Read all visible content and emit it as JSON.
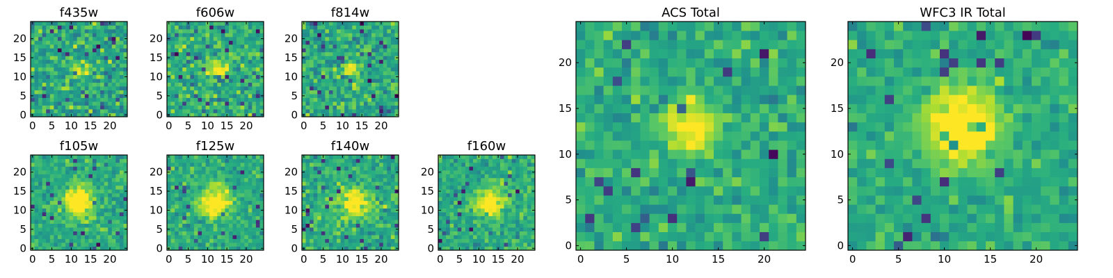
{
  "chart_data": [
    {
      "type": "heatmap",
      "title": "f435w",
      "xticks": [
        "0",
        "5",
        "10",
        "15",
        "20"
      ],
      "yticks": [
        "0",
        "5",
        "10",
        "15",
        "20"
      ],
      "grid_size": 25,
      "xlim": [
        -0.5,
        24.5
      ],
      "ylim": [
        -0.5,
        24.5
      ],
      "colormap": "viridis",
      "blob_center": [
        12,
        12
      ],
      "blob_width": 1.4,
      "blob_strength": 0.35,
      "noise": 0.85,
      "seed": 11
    },
    {
      "type": "heatmap",
      "title": "f606w",
      "xticks": [
        "0",
        "5",
        "10",
        "15",
        "20"
      ],
      "yticks": [
        "0",
        "5",
        "10",
        "15",
        "20"
      ],
      "grid_size": 25,
      "xlim": [
        -0.5,
        24.5
      ],
      "ylim": [
        -0.5,
        24.5
      ],
      "colormap": "viridis",
      "blob_center": [
        13,
        12
      ],
      "blob_width": 1.8,
      "blob_strength": 0.45,
      "noise": 0.8,
      "seed": 23
    },
    {
      "type": "heatmap",
      "title": "f814w",
      "xticks": [
        "0",
        "5",
        "10",
        "15",
        "20"
      ],
      "yticks": [
        "0",
        "5",
        "10",
        "15",
        "20"
      ],
      "grid_size": 25,
      "xlim": [
        -0.5,
        24.5
      ],
      "ylim": [
        -0.5,
        24.5
      ],
      "colormap": "viridis",
      "blob_center": [
        12,
        12
      ],
      "blob_width": 1.6,
      "blob_strength": 0.4,
      "noise": 0.8,
      "seed": 37
    },
    {
      "type": "heatmap",
      "title": "f105w",
      "xticks": [
        "0",
        "5",
        "10",
        "15",
        "20"
      ],
      "yticks": [
        "0",
        "5",
        "10",
        "15",
        "20"
      ],
      "grid_size": 25,
      "xlim": [
        -0.5,
        24.5
      ],
      "ylim": [
        -0.5,
        24.5
      ],
      "colormap": "viridis",
      "blob_center": [
        12,
        12
      ],
      "blob_width": 2.8,
      "blob_strength": 0.55,
      "noise": 0.6,
      "seed": 41
    },
    {
      "type": "heatmap",
      "title": "f125w",
      "xticks": [
        "0",
        "5",
        "10",
        "15",
        "20"
      ],
      "yticks": [
        "0",
        "5",
        "10",
        "15",
        "20"
      ],
      "grid_size": 25,
      "xlim": [
        -0.5,
        24.5
      ],
      "ylim": [
        -0.5,
        24.5
      ],
      "colormap": "viridis",
      "blob_center": [
        12,
        12
      ],
      "blob_width": 2.8,
      "blob_strength": 0.5,
      "noise": 0.6,
      "seed": 53
    },
    {
      "type": "heatmap",
      "title": "f140w",
      "xticks": [
        "0",
        "5",
        "10",
        "15",
        "20"
      ],
      "yticks": [
        "0",
        "5",
        "10",
        "15",
        "20"
      ],
      "grid_size": 25,
      "xlim": [
        -0.5,
        24.5
      ],
      "ylim": [
        -0.5,
        24.5
      ],
      "colormap": "viridis",
      "blob_center": [
        13,
        12
      ],
      "blob_width": 2.6,
      "blob_strength": 0.5,
      "noise": 0.65,
      "seed": 67
    },
    {
      "type": "heatmap",
      "title": "f160w",
      "xticks": [
        "0",
        "5",
        "10",
        "15",
        "20"
      ],
      "yticks": [
        "0",
        "5",
        "10",
        "15",
        "20"
      ],
      "grid_size": 25,
      "xlim": [
        -0.5,
        24.5
      ],
      "ylim": [
        -0.5,
        24.5
      ],
      "colormap": "viridis",
      "blob_center": [
        13,
        12
      ],
      "blob_width": 2.6,
      "blob_strength": 0.5,
      "noise": 0.65,
      "seed": 79
    },
    {
      "type": "heatmap",
      "title": "ACS Total",
      "xticks": [
        "0",
        "5",
        "10",
        "15",
        "20"
      ],
      "yticks": [
        "0",
        "5",
        "10",
        "15",
        "20"
      ],
      "grid_size": 25,
      "xlim": [
        -0.5,
        24.5
      ],
      "ylim": [
        -0.5,
        24.5
      ],
      "colormap": "viridis",
      "blob_center": [
        12,
        13
      ],
      "blob_width": 2.0,
      "blob_strength": 0.5,
      "noise": 0.6,
      "seed": 97
    },
    {
      "type": "heatmap",
      "title": "WFC3 IR Total",
      "xticks": [
        "0",
        "5",
        "10",
        "15",
        "20"
      ],
      "yticks": [
        "0",
        "5",
        "10",
        "15",
        "20"
      ],
      "grid_size": 25,
      "xlim": [
        -0.5,
        24.5
      ],
      "ylim": [
        -0.5,
        24.5
      ],
      "colormap": "viridis",
      "blob_center": [
        12,
        13
      ],
      "blob_width": 2.8,
      "blob_strength": 0.6,
      "noise": 0.5,
      "seed": 113
    }
  ]
}
